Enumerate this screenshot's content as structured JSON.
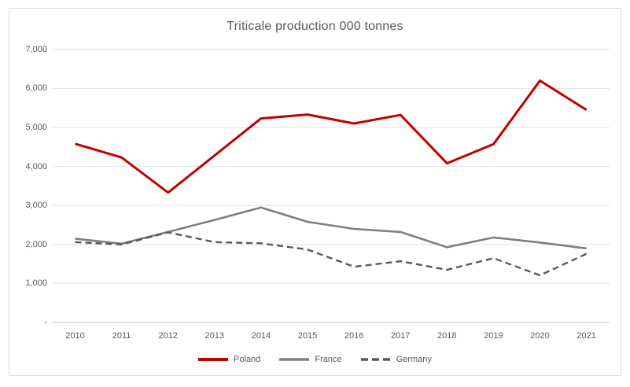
{
  "chart_data": {
    "type": "line",
    "title": "Triticale production 000 tonnes",
    "categories": [
      "2010",
      "2011",
      "2012",
      "2013",
      "2014",
      "2015",
      "2016",
      "2017",
      "2018",
      "2019",
      "2020",
      "2021"
    ],
    "series": [
      {
        "name": "Poland",
        "color": "#C00000",
        "dash": "solid",
        "width": 3,
        "values": [
          4580,
          4230,
          3330,
          4280,
          5230,
          5330,
          5100,
          5320,
          4080,
          4570,
          6200,
          5450
        ]
      },
      {
        "name": "France",
        "color": "#7F7F7F",
        "dash": "solid",
        "width": 2.6,
        "values": [
          2150,
          2020,
          2320,
          2630,
          2950,
          2580,
          2400,
          2320,
          1930,
          2180,
          2050,
          1900
        ]
      },
      {
        "name": "Germany",
        "color": "#595959",
        "dash": "dashed",
        "width": 2.4,
        "values": [
          2060,
          2000,
          2310,
          2060,
          2030,
          1870,
          1430,
          1570,
          1350,
          1650,
          1210,
          1760
        ]
      }
    ],
    "ylim": [
      0,
      7000
    ],
    "yticks": [
      {
        "label": "7,000",
        "value": 7000
      },
      {
        "label": "6,000",
        "value": 6000
      },
      {
        "label": "5,000",
        "value": 5000
      },
      {
        "label": "4,000",
        "value": 4000
      },
      {
        "label": "3,000",
        "value": 3000
      },
      {
        "label": "2,000",
        "value": 2000
      },
      {
        "label": "1,000",
        "value": 1000
      },
      {
        "label": "-",
        "value": 0
      }
    ],
    "grid": true,
    "legend_position": "bottom",
    "legend_labels": [
      "Poland",
      "France",
      "Germany"
    ]
  },
  "colors": {
    "background": "#FFFFFF",
    "frame_border": "#D9D9D9",
    "gridline": "#E2E2E2",
    "axis_line": "#C9C9C9",
    "text": "#595959"
  }
}
